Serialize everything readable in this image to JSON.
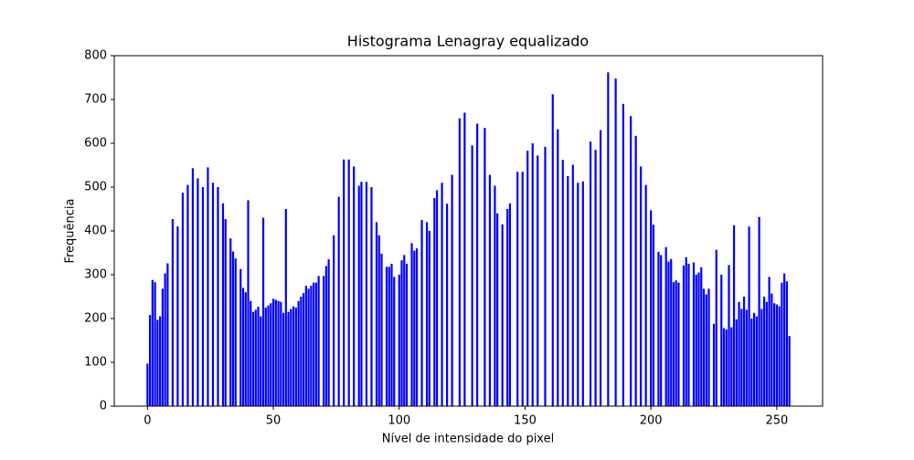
{
  "chart_data": {
    "type": "bar",
    "title": "Histograma Lenagray equalizado",
    "xlabel": "Nível de intensidade do pixel",
    "ylabel": "Frequência",
    "x": [
      0,
      1,
      2,
      3,
      4,
      5,
      6,
      7,
      8,
      9,
      10,
      11,
      12,
      13,
      14,
      15,
      16,
      17,
      18,
      19,
      20,
      21,
      22,
      23,
      24,
      25,
      26,
      27,
      28,
      29,
      30,
      31,
      32,
      33,
      34,
      35,
      36,
      37,
      38,
      39,
      40,
      41,
      42,
      43,
      44,
      45,
      46,
      47,
      48,
      49,
      50,
      51,
      52,
      53,
      54,
      55,
      56,
      57,
      58,
      59,
      60,
      61,
      62,
      63,
      64,
      65,
      66,
      67,
      68,
      69,
      70,
      71,
      72,
      73,
      74,
      75,
      76,
      77,
      78,
      79,
      80,
      81,
      82,
      83,
      84,
      85,
      86,
      87,
      88,
      89,
      90,
      91,
      92,
      93,
      94,
      95,
      96,
      97,
      98,
      99,
      100,
      101,
      102,
      103,
      104,
      105,
      106,
      107,
      108,
      109,
      110,
      111,
      112,
      113,
      114,
      115,
      116,
      117,
      118,
      119,
      120,
      121,
      122,
      123,
      124,
      125,
      126,
      127,
      128,
      129,
      130,
      131,
      132,
      133,
      134,
      135,
      136,
      137,
      138,
      139,
      140,
      141,
      142,
      143,
      144,
      145,
      146,
      147,
      148,
      149,
      150,
      151,
      152,
      153,
      154,
      155,
      156,
      157,
      158,
      159,
      160,
      161,
      162,
      163,
      164,
      165,
      166,
      167,
      168,
      169,
      170,
      171,
      172,
      173,
      174,
      175,
      176,
      177,
      178,
      179,
      180,
      181,
      182,
      183,
      184,
      185,
      186,
      187,
      188,
      189,
      190,
      191,
      192,
      193,
      194,
      195,
      196,
      197,
      198,
      199,
      200,
      201,
      202,
      203,
      204,
      205,
      206,
      207,
      208,
      209,
      210,
      211,
      212,
      213,
      214,
      215,
      216,
      217,
      218,
      219,
      220,
      221,
      222,
      223,
      224,
      225,
      226,
      227,
      228,
      229,
      230,
      231,
      232,
      233,
      234,
      235,
      236,
      237,
      238,
      239,
      240,
      241,
      242,
      243,
      244,
      245,
      246,
      247,
      248,
      249,
      250,
      251,
      252,
      253,
      254,
      255
    ],
    "values": [
      97,
      208,
      288,
      283,
      197,
      205,
      268,
      303,
      326,
      0,
      427,
      0,
      410,
      0,
      487,
      0,
      505,
      0,
      543,
      0,
      520,
      0,
      500,
      0,
      545,
      0,
      510,
      0,
      500,
      0,
      463,
      427,
      0,
      383,
      353,
      337,
      0,
      313,
      270,
      260,
      470,
      240,
      215,
      220,
      227,
      205,
      430,
      225,
      230,
      235,
      245,
      243,
      240,
      238,
      213,
      450,
      215,
      222,
      228,
      225,
      240,
      250,
      258,
      275,
      268,
      275,
      282,
      282,
      297,
      0,
      297,
      320,
      335,
      0,
      390,
      0,
      478,
      0,
      563,
      0,
      563,
      0,
      547,
      0,
      503,
      512,
      0,
      512,
      0,
      500,
      0,
      420,
      390,
      348,
      0,
      318,
      318,
      325,
      295,
      0,
      300,
      333,
      345,
      325,
      0,
      372,
      355,
      360,
      0,
      425,
      0,
      420,
      400,
      0,
      475,
      493,
      0,
      510,
      0,
      462,
      0,
      528,
      0,
      0,
      657,
      0,
      670,
      0,
      0,
      595,
      0,
      645,
      0,
      0,
      635,
      0,
      528,
      0,
      503,
      440,
      0,
      415,
      0,
      450,
      463,
      0,
      0,
      535,
      0,
      535,
      0,
      583,
      0,
      600,
      0,
      572,
      0,
      0,
      592,
      0,
      0,
      712,
      0,
      632,
      0,
      562,
      0,
      525,
      0,
      551,
      0,
      510,
      0,
      513,
      0,
      0,
      604,
      0,
      585,
      0,
      630,
      0,
      0,
      762,
      0,
      0,
      748,
      0,
      0,
      690,
      0,
      0,
      662,
      0,
      617,
      0,
      547,
      0,
      505,
      0,
      447,
      414,
      0,
      352,
      345,
      0,
      363,
      330,
      336,
      283,
      287,
      282,
      0,
      321,
      340,
      325,
      0,
      328,
      300,
      305,
      317,
      268,
      255,
      268,
      0,
      188,
      357,
      0,
      300,
      178,
      175,
      322,
      180,
      413,
      198,
      238,
      222,
      250,
      220,
      410,
      200,
      213,
      205,
      432,
      222,
      250,
      238,
      295,
      257,
      235,
      232,
      228,
      282,
      303,
      285,
      160
    ],
    "color": "blue",
    "xlim": [
      -13.2,
      268.2
    ],
    "xticks": [
      0,
      50,
      100,
      150,
      200,
      250
    ],
    "ylim": [
      0,
      800
    ],
    "yticks": [
      0,
      100,
      200,
      300,
      400,
      500,
      600,
      700,
      800
    ]
  }
}
